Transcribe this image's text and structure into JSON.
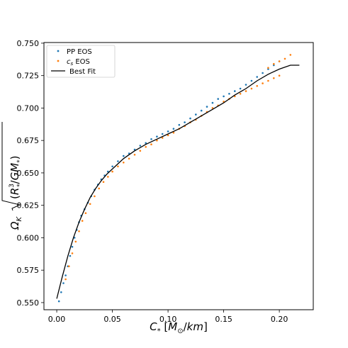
{
  "chart_data": {
    "type": "scatter",
    "xlabel": "C* [M⊙/km]",
    "ylabel": "ΩK √(R*³/GM*)",
    "xlim": [
      -0.0115,
      0.2305
    ],
    "ylim": [
      0.5445,
      0.7505
    ],
    "xticks": [
      "0.00",
      "0.05",
      "0.10",
      "0.15",
      "0.20"
    ],
    "yticks": [
      "0.550",
      "0.575",
      "0.600",
      "0.625",
      "0.650",
      "0.675",
      "0.700",
      "0.725",
      "0.750"
    ],
    "legend_position": "top-left",
    "grid": false,
    "series": [
      {
        "name": "PP EOS",
        "kind": "scatter",
        "color": "#1f77b4",
        "points": [
          [
            0.002,
            0.551
          ],
          [
            0.004,
            0.558
          ],
          [
            0.006,
            0.565
          ],
          [
            0.008,
            0.571
          ],
          [
            0.01,
            0.578
          ],
          [
            0.012,
            0.586
          ],
          [
            0.014,
            0.593
          ],
          [
            0.016,
            0.6
          ],
          [
            0.018,
            0.606
          ],
          [
            0.02,
            0.612
          ],
          [
            0.022,
            0.617
          ],
          [
            0.025,
            0.622
          ],
          [
            0.028,
            0.627
          ],
          [
            0.031,
            0.632
          ],
          [
            0.034,
            0.637
          ],
          [
            0.037,
            0.641
          ],
          [
            0.04,
            0.645
          ],
          [
            0.043,
            0.648
          ],
          [
            0.046,
            0.651
          ],
          [
            0.05,
            0.655
          ],
          [
            0.055,
            0.659
          ],
          [
            0.06,
            0.663
          ],
          [
            0.065,
            0.665
          ],
          [
            0.07,
            0.668
          ],
          [
            0.075,
            0.671
          ],
          [
            0.08,
            0.673
          ],
          [
            0.085,
            0.676
          ],
          [
            0.09,
            0.678
          ],
          [
            0.095,
            0.68
          ],
          [
            0.1,
            0.682
          ],
          [
            0.105,
            0.684
          ],
          [
            0.11,
            0.687
          ],
          [
            0.115,
            0.689
          ],
          [
            0.12,
            0.692
          ],
          [
            0.125,
            0.695
          ],
          [
            0.13,
            0.698
          ],
          [
            0.135,
            0.701
          ],
          [
            0.14,
            0.704
          ],
          [
            0.145,
            0.707
          ],
          [
            0.15,
            0.709
          ],
          [
            0.155,
            0.711
          ],
          [
            0.16,
            0.713
          ],
          [
            0.165,
            0.715
          ],
          [
            0.17,
            0.718
          ],
          [
            0.175,
            0.721
          ],
          [
            0.18,
            0.724
          ],
          [
            0.185,
            0.727
          ],
          [
            0.19,
            0.73
          ],
          [
            0.195,
            0.733
          ],
          [
            0.2,
            0.736
          ]
        ]
      },
      {
        "name": "cs EOS",
        "kind": "scatter",
        "color": "#ff7f0e",
        "points": [
          [
            0.008,
            0.568
          ],
          [
            0.011,
            0.578
          ],
          [
            0.014,
            0.588
          ],
          [
            0.017,
            0.597
          ],
          [
            0.02,
            0.605
          ],
          [
            0.023,
            0.613
          ],
          [
            0.026,
            0.619
          ],
          [
            0.03,
            0.626
          ],
          [
            0.034,
            0.632
          ],
          [
            0.038,
            0.638
          ],
          [
            0.042,
            0.643
          ],
          [
            0.046,
            0.647
          ],
          [
            0.05,
            0.651
          ],
          [
            0.055,
            0.655
          ],
          [
            0.06,
            0.658
          ],
          [
            0.065,
            0.661
          ],
          [
            0.07,
            0.664
          ],
          [
            0.075,
            0.667
          ],
          [
            0.08,
            0.67
          ],
          [
            0.085,
            0.672
          ],
          [
            0.09,
            0.675
          ],
          [
            0.095,
            0.677
          ],
          [
            0.1,
            0.679
          ],
          [
            0.105,
            0.681
          ],
          [
            0.11,
            0.684
          ],
          [
            0.115,
            0.686
          ],
          [
            0.12,
            0.689
          ],
          [
            0.125,
            0.691
          ],
          [
            0.13,
            0.694
          ],
          [
            0.135,
            0.697
          ],
          [
            0.14,
            0.7
          ],
          [
            0.145,
            0.702
          ],
          [
            0.15,
            0.705
          ],
          [
            0.155,
            0.707
          ],
          [
            0.16,
            0.709
          ],
          [
            0.165,
            0.711
          ],
          [
            0.17,
            0.713
          ],
          [
            0.175,
            0.715
          ],
          [
            0.18,
            0.717
          ],
          [
            0.185,
            0.719
          ],
          [
            0.19,
            0.721
          ],
          [
            0.195,
            0.723
          ],
          [
            0.2,
            0.725
          ],
          [
            0.19,
            0.731
          ],
          [
            0.195,
            0.734
          ],
          [
            0.2,
            0.736
          ],
          [
            0.205,
            0.738
          ],
          [
            0.21,
            0.741
          ]
        ]
      },
      {
        "name": "Best Fit",
        "kind": "line",
        "color": "#000000",
        "points": [
          [
            0.0,
            0.553
          ],
          [
            0.005,
            0.57
          ],
          [
            0.01,
            0.586
          ],
          [
            0.015,
            0.6
          ],
          [
            0.02,
            0.612
          ],
          [
            0.025,
            0.622
          ],
          [
            0.03,
            0.631
          ],
          [
            0.035,
            0.638
          ],
          [
            0.04,
            0.644
          ],
          [
            0.045,
            0.649
          ],
          [
            0.05,
            0.653
          ],
          [
            0.055,
            0.657
          ],
          [
            0.06,
            0.661
          ],
          [
            0.065,
            0.664
          ],
          [
            0.07,
            0.667
          ],
          [
            0.08,
            0.672
          ],
          [
            0.09,
            0.676
          ],
          [
            0.1,
            0.68
          ],
          [
            0.11,
            0.684
          ],
          [
            0.12,
            0.689
          ],
          [
            0.13,
            0.694
          ],
          [
            0.14,
            0.699
          ],
          [
            0.15,
            0.704
          ],
          [
            0.16,
            0.71
          ],
          [
            0.17,
            0.715
          ],
          [
            0.18,
            0.721
          ],
          [
            0.19,
            0.726
          ],
          [
            0.2,
            0.73
          ],
          [
            0.21,
            0.733
          ],
          [
            0.218,
            0.733
          ]
        ]
      }
    ]
  }
}
